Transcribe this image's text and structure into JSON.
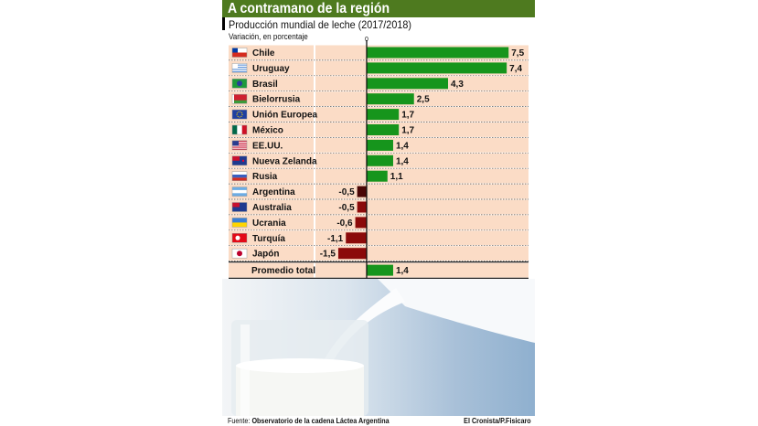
{
  "title": "A contramano de la región",
  "subtitle": "Producción mundial de leche (2017/2018)",
  "unit_label": "Variación, en porcentaje",
  "footer": {
    "source_label": "Fuente:",
    "source": "Observatorio de la cadena Láctea Argentina",
    "credit": "El Cronista/P.Fisicaro"
  },
  "colors": {
    "positive": "#16951c",
    "negative": "#8b0a0a",
    "highlight_negative": "#4a0606",
    "title_bar": "#4e7a1f",
    "row_bg": "#fbdcc6"
  },
  "chart_data": {
    "type": "bar",
    "orientation": "horizontal",
    "zero_label": "0",
    "categories": [
      "Chile",
      "Uruguay",
      "Brasil",
      "Bielorrusia",
      "Unión Europea",
      "México",
      "EE.UU.",
      "Nueva Zelanda",
      "Rusia",
      "Argentina",
      "Australia",
      "Ucrania",
      "Turquía",
      "Japón"
    ],
    "values": [
      7.5,
      7.4,
      4.3,
      2.5,
      1.7,
      1.7,
      1.4,
      1.4,
      1.1,
      -0.5,
      -0.5,
      -0.6,
      -1.1,
      -1.5
    ],
    "value_labels": [
      "7,5",
      "7,4",
      "4,3",
      "2,5",
      "1,7",
      "1,7",
      "1,4",
      "1,4",
      "1,1",
      "-0,5",
      "-0,5",
      "-0,6",
      "-1,1",
      "-1,5"
    ],
    "flags": [
      "chile-flag",
      "uruguay-flag",
      "brazil-flag",
      "belarus-flag",
      "eu-flag",
      "mexico-flag",
      "usa-flag",
      "new-zealand-flag",
      "russia-flag",
      "argentina-flag",
      "australia-flag",
      "ukraine-flag",
      "turkey-flag",
      "japan-flag"
    ],
    "highlight": "Argentina",
    "total": {
      "label": "Promedio total",
      "value": 1.4,
      "value_label": "1,4"
    }
  }
}
